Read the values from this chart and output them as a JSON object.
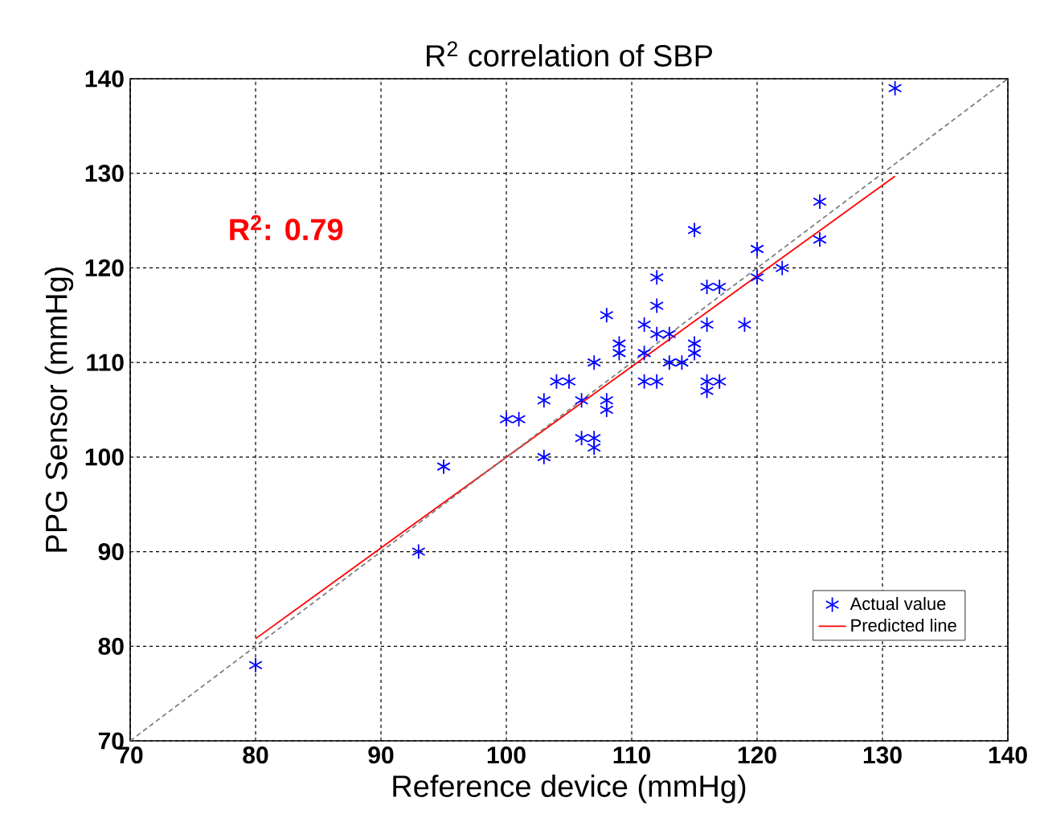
{
  "chart_data": {
    "type": "scatter",
    "title": "R$^{2}$ correlation of SBP",
    "xlabel": "Reference device (mmHg)",
    "ylabel": "PPG Sensor (mmHg)",
    "annotations": [
      "R$^{2}$: 0.79"
    ],
    "xlim": [
      70,
      140
    ],
    "ylim": [
      70,
      140
    ],
    "xticks": [
      70,
      80,
      90,
      100,
      110,
      120,
      130,
      140
    ],
    "yticks": [
      70,
      80,
      90,
      100,
      110,
      120,
      130,
      140
    ],
    "grid": true,
    "legend": "bottom right",
    "series": [
      {
        "name": "Actual value",
        "color": "#0000ff",
        "marker": "cross",
        "x": [
          125,
          115,
          125,
          120,
          122,
          120,
          112,
          116,
          117,
          112,
          108,
          111,
          119,
          116,
          112,
          113,
          109,
          115,
          109,
          111,
          115,
          107,
          113,
          114,
          104,
          105,
          111,
          112,
          116,
          117,
          116,
          103,
          106,
          108,
          108,
          100,
          101,
          106,
          107,
          107,
          103,
          95,
          93,
          80,
          131
        ],
        "values": [
          127,
          124,
          123,
          122,
          120,
          119,
          119,
          118,
          118,
          116,
          115,
          114,
          114,
          114,
          113,
          113,
          112,
          112,
          111,
          111,
          111,
          110,
          110,
          110,
          108,
          108,
          108,
          108,
          108,
          108,
          107,
          106,
          106,
          106,
          105,
          104,
          104,
          102,
          102,
          101,
          100,
          99,
          90,
          78,
          139
        ]
      },
      {
        "name": "Predicted line",
        "type": "line",
        "color": "#ff0000",
        "marker": "none",
        "line_style": "solid",
        "x": [
          80,
          131
        ],
        "values": [
          80.8,
          129.7
        ]
      },
      {
        "type": "line",
        "color": "#808080",
        "marker": "none",
        "line_style": "dashed",
        "x": [
          70,
          140
        ],
        "values": [
          70,
          140
        ]
      }
    ]
  }
}
